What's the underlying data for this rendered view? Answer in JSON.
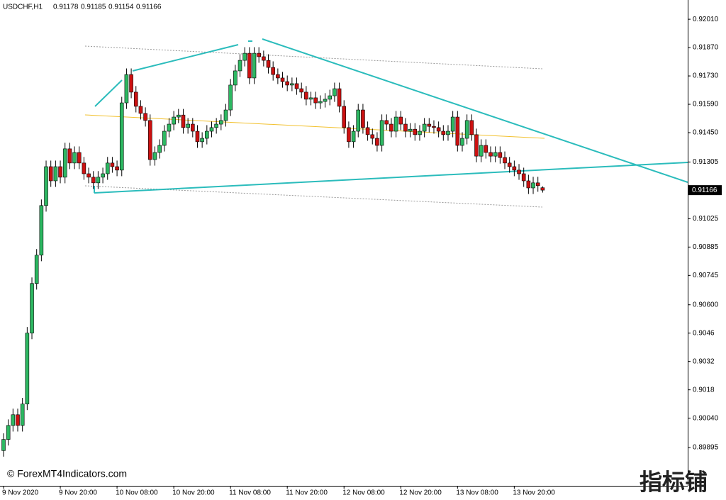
{
  "chart_data": {
    "type": "candlestick",
    "symbol": "USDCHF,H1",
    "watermark": "© ForexMT4Indicators.com",
    "logo": "指标铺",
    "up_color": "#2db862",
    "down_color": "#cc1111",
    "ylim": [
      0.89706,
      0.92105
    ],
    "yticks": [
      {
        "value": 0.9201,
        "label": "0.92010"
      },
      {
        "value": 0.9187,
        "label": "0.91870"
      },
      {
        "value": 0.9173,
        "label": "0.91730"
      },
      {
        "value": 0.9159,
        "label": "0.91590"
      },
      {
        "value": 0.9145,
        "label": "0.91450"
      },
      0.91305,
      0.91025,
      0.90885,
      0.90745,
      {
        "value": 0.906,
        "label": "0.90600"
      },
      0.9046,
      0.9032,
      0.9018,
      {
        "value": 0.9004,
        "label": "0.90040"
      },
      0.89895
    ],
    "categories": [
      "9 Nov 2020",
      null,
      null,
      null,
      null,
      null,
      null,
      null,
      null,
      null,
      null,
      null,
      "9 Nov 20:00",
      null,
      null,
      null,
      null,
      null,
      null,
      null,
      null,
      null,
      null,
      null,
      "10 Nov 08:00",
      null,
      null,
      null,
      null,
      null,
      null,
      null,
      null,
      null,
      null,
      null,
      "10 Nov 20:00",
      null,
      null,
      null,
      null,
      null,
      null,
      null,
      null,
      null,
      null,
      null,
      "11 Nov 08:00",
      null,
      null,
      null,
      null,
      null,
      null,
      null,
      null,
      null,
      null,
      null,
      "11 Nov 20:00",
      null,
      null,
      null,
      null,
      null,
      null,
      null,
      null,
      null,
      null,
      null,
      "12 Nov 08:00",
      null,
      null,
      null,
      null,
      null,
      null,
      null,
      null,
      null,
      null,
      null,
      "12 Nov 20:00",
      null,
      null,
      null,
      null,
      null,
      null,
      null,
      null,
      null,
      null,
      null,
      "13 Nov 08:00",
      null,
      null,
      null,
      null,
      null,
      null,
      null,
      null,
      null,
      null,
      null,
      "13 Nov 20:00",
      null,
      null,
      null,
      null,
      null,
      null
    ],
    "open": [
      0.8988,
      0.89935,
      0.90004,
      0.90057,
      0.90004,
      0.9011,
      0.9046,
      0.90705,
      0.90845,
      0.9109,
      0.91282,
      0.91212,
      0.91282,
      0.9123,
      0.9137,
      0.913,
      0.91352,
      0.913,
      0.91247,
      0.9123,
      0.91202,
      0.9123,
      0.91247,
      0.913,
      0.91282,
      0.91265,
      0.91597,
      0.91737,
      0.9165,
      0.9158,
      0.91545,
      0.9151,
      0.91317,
      0.91352,
      0.91387,
      0.91457,
      0.91492,
      0.91527,
      0.91537,
      0.91475,
      0.91492,
      0.91457,
      0.91405,
      0.91422,
      0.91457,
      0.91475,
      0.91492,
      0.9151,
      0.91562,
      0.91685,
      0.91755,
      0.91807,
      0.91842,
      0.9172,
      0.91842,
      0.91825,
      0.91807,
      0.91772,
      0.91737,
      0.9172,
      0.91702,
      0.91685,
      0.91692,
      0.91667,
      0.9165,
      0.91615,
      0.91622,
      0.91597,
      0.91604,
      0.91615,
      0.91632,
      0.91667,
      0.9158,
      0.91475,
      0.91405,
      0.91457,
      0.91562,
      0.91475,
      0.9144,
      0.91422,
      0.91387,
      0.9151,
      0.91492,
      0.91457,
      0.91527,
      0.91492,
      0.91457,
      0.91467,
      0.9144,
      0.91457,
      0.91492,
      0.91481,
      0.91475,
      0.91457,
      0.9144,
      0.91457,
      0.91527,
      0.91387,
      0.91422,
      0.9151,
      0.9144,
      0.91334,
      0.91387,
      0.91352,
      0.91334,
      0.91352,
      0.91327,
      0.913,
      0.91282,
      0.91265,
      0.91247,
      0.91212,
      0.91177,
      0.91202,
      0.91178
    ],
    "high": [
      0.89965,
      0.90034,
      0.90087,
      0.90087,
      0.9014,
      0.9049,
      0.90735,
      0.90875,
      0.9112,
      0.91312,
      0.91312,
      0.91312,
      0.91312,
      0.914,
      0.914,
      0.91382,
      0.91382,
      0.9133,
      0.91277,
      0.9126,
      0.9126,
      0.91277,
      0.9133,
      0.9133,
      0.91312,
      0.91627,
      0.91767,
      0.91767,
      0.9168,
      0.9161,
      0.91575,
      0.9154,
      0.91382,
      0.91417,
      0.91487,
      0.91522,
      0.91557,
      0.91567,
      0.91567,
      0.91522,
      0.91522,
      0.91487,
      0.91452,
      0.91487,
      0.91505,
      0.91522,
      0.9154,
      0.91592,
      0.91715,
      0.91785,
      0.91837,
      0.91872,
      0.91872,
      0.91872,
      0.91872,
      0.91855,
      0.91837,
      0.91802,
      0.91767,
      0.9175,
      0.91732,
      0.91722,
      0.91722,
      0.91697,
      0.9168,
      0.91652,
      0.91652,
      0.91634,
      0.91645,
      0.91662,
      0.91697,
      0.91697,
      0.9161,
      0.91505,
      0.91487,
      0.91592,
      0.91592,
      0.91505,
      0.9147,
      0.91452,
      0.9154,
      0.9154,
      0.91522,
      0.91557,
      0.91557,
      0.91522,
      0.91497,
      0.91497,
      0.91487,
      0.91522,
      0.91522,
      0.91511,
      0.91505,
      0.91487,
      0.91487,
      0.91557,
      0.91557,
      0.91452,
      0.9154,
      0.9154,
      0.9147,
      0.91417,
      0.91417,
      0.91382,
      0.91382,
      0.91382,
      0.91357,
      0.9133,
      0.91312,
      0.91295,
      0.91277,
      0.91242,
      0.91232,
      0.91232,
      0.91185
    ],
    "low": [
      0.8985,
      0.89905,
      0.89974,
      0.89974,
      0.89974,
      0.9008,
      0.9043,
      0.90675,
      0.90815,
      0.9106,
      0.91182,
      0.91182,
      0.912,
      0.912,
      0.9127,
      0.9127,
      0.9127,
      0.91217,
      0.912,
      0.91172,
      0.91172,
      0.912,
      0.91217,
      0.91252,
      0.91235,
      0.91235,
      0.91567,
      0.9162,
      0.9155,
      0.91515,
      0.9148,
      0.91287,
      0.91287,
      0.91322,
      0.91357,
      0.91427,
      0.91462,
      0.91497,
      0.91445,
      0.91445,
      0.91427,
      0.91375,
      0.91375,
      0.91392,
      0.91427,
      0.91445,
      0.91462,
      0.9148,
      0.91532,
      0.91655,
      0.91725,
      0.91777,
      0.9169,
      0.9169,
      0.91795,
      0.91777,
      0.91742,
      0.91707,
      0.9169,
      0.91672,
      0.91655,
      0.91655,
      0.91637,
      0.9162,
      0.91585,
      0.91585,
      0.91567,
      0.91567,
      0.91574,
      0.91585,
      0.91602,
      0.9155,
      0.91445,
      0.91375,
      0.91375,
      0.91427,
      0.91445,
      0.9141,
      0.91392,
      0.91357,
      0.91357,
      0.91462,
      0.91427,
      0.91427,
      0.91462,
      0.91427,
      0.91427,
      0.9141,
      0.9141,
      0.91427,
      0.91451,
      0.91445,
      0.91427,
      0.9141,
      0.9141,
      0.91427,
      0.91357,
      0.91357,
      0.91392,
      0.9141,
      0.91304,
      0.91304,
      0.91322,
      0.91304,
      0.91304,
      0.91297,
      0.9127,
      0.91252,
      0.91235,
      0.91217,
      0.91182,
      0.91147,
      0.91147,
      0.91158,
      0.91154
    ],
    "close": [
      0.89935,
      0.90004,
      0.90057,
      0.90004,
      0.9011,
      0.9046,
      0.90705,
      0.90845,
      0.9109,
      0.91282,
      0.91212,
      0.91282,
      0.9123,
      0.9137,
      0.913,
      0.91352,
      0.913,
      0.91247,
      0.9123,
      0.91202,
      0.9123,
      0.91247,
      0.913,
      0.91282,
      0.91265,
      0.91597,
      0.91737,
      0.9165,
      0.9158,
      0.91545,
      0.9151,
      0.91317,
      0.91352,
      0.91387,
      0.91457,
      0.91492,
      0.91527,
      0.91537,
      0.91475,
      0.91492,
      0.91457,
      0.91405,
      0.91422,
      0.91457,
      0.91475,
      0.91492,
      0.9151,
      0.91562,
      0.91685,
      0.91755,
      0.91807,
      0.91842,
      0.9172,
      0.91842,
      0.91825,
      0.91807,
      0.91772,
      0.91737,
      0.9172,
      0.91702,
      0.91685,
      0.91692,
      0.91667,
      0.9165,
      0.91615,
      0.91622,
      0.91597,
      0.91604,
      0.91615,
      0.91632,
      0.91667,
      0.9158,
      0.91475,
      0.91405,
      0.91457,
      0.91562,
      0.91475,
      0.9144,
      0.91422,
      0.91387,
      0.9151,
      0.91492,
      0.91457,
      0.91527,
      0.91492,
      0.91457,
      0.91467,
      0.9144,
      0.91457,
      0.91492,
      0.91481,
      0.91475,
      0.91457,
      0.9144,
      0.91457,
      0.91527,
      0.91387,
      0.91422,
      0.9151,
      0.9144,
      0.91334,
      0.91387,
      0.91352,
      0.91334,
      0.91352,
      0.91327,
      0.913,
      0.91282,
      0.91265,
      0.91247,
      0.91212,
      0.91177,
      0.91202,
      0.91188,
      0.91166
    ]
  }
}
